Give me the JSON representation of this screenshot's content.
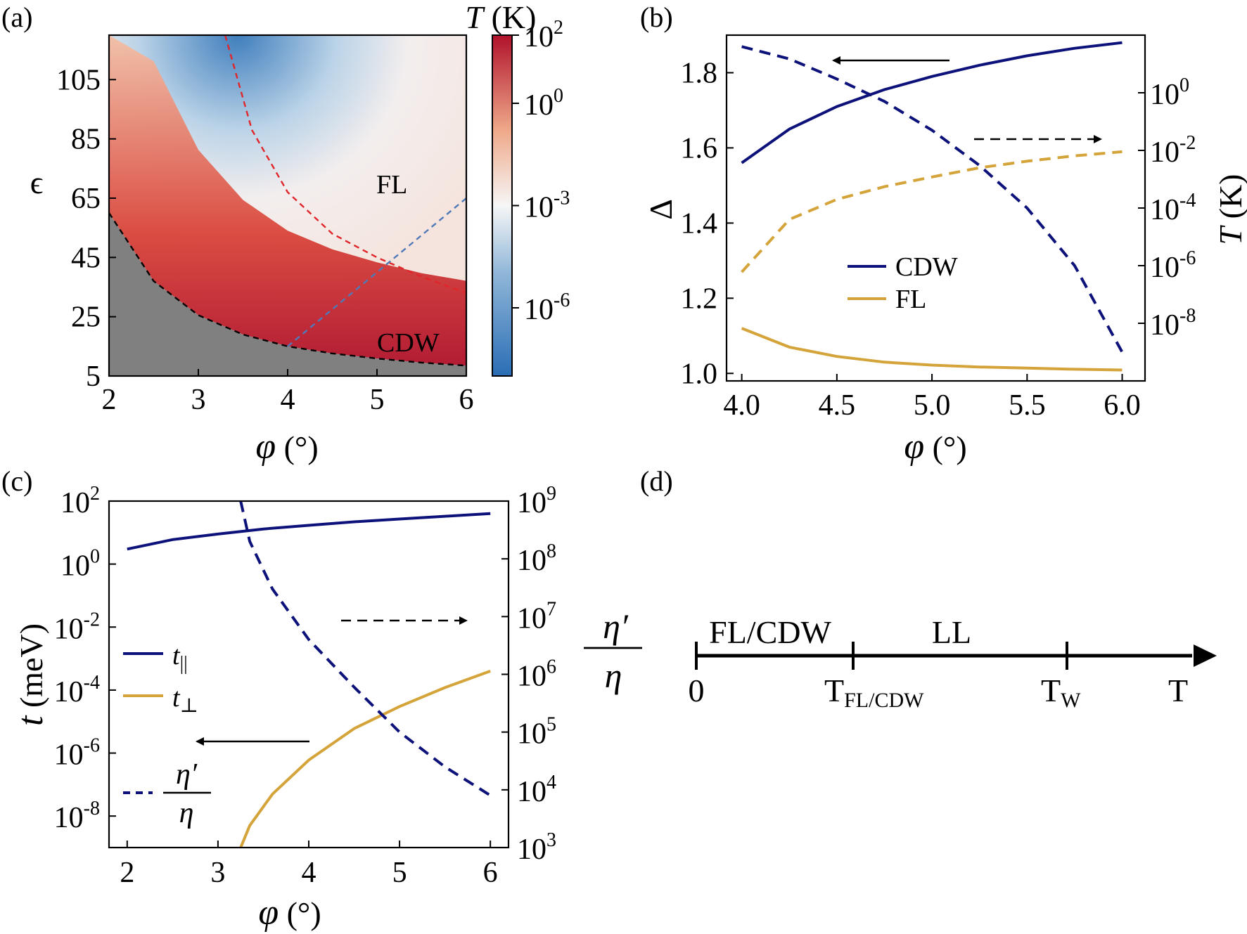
{
  "colors": {
    "navy": "#0d127a",
    "gold": "#d4a43a",
    "red_dash": "#e0262a",
    "blue_dash": "#5079b8",
    "gray_region": "#808080"
  },
  "chart_data": [
    {
      "panel": "(a)",
      "type": "heatmap",
      "xlabel": "φ (°)",
      "ylabel": "ϵ",
      "xlim": [
        2,
        6
      ],
      "ylim": [
        5,
        120
      ],
      "xticks": [
        "2",
        "3",
        "4",
        "5",
        "6"
      ],
      "yticks": [
        "5",
        "25",
        "45",
        "65",
        "85",
        "105"
      ],
      "colorbar": {
        "label": "T (K)",
        "scale": "log",
        "range": [
          1e-08,
          100
        ],
        "ticks": [
          {
            "base": "10",
            "exp": "2",
            "value": 100
          },
          {
            "base": "10",
            "exp": "0",
            "value": 1
          },
          {
            "base": "10",
            "exp": "-3",
            "value": 0.001
          },
          {
            "base": "10",
            "exp": "-6",
            "value": 1e-06
          }
        ]
      },
      "regions": [
        "FL",
        "CDW"
      ],
      "curves": [
        {
          "role": "boundary-black-dashed",
          "x": [
            2.0,
            2.5,
            3.0,
            3.5,
            4.0,
            4.5,
            5.0,
            5.5,
            6.0
          ],
          "y": [
            60,
            37,
            25.5,
            19,
            15,
            12.6,
            10.9,
            9.5,
            8.5
          ]
        },
        {
          "role": "red-dashed",
          "x": [
            3.3,
            3.6,
            4.0,
            4.5,
            5.0,
            5.5,
            6.0
          ],
          "y": [
            120,
            88,
            67,
            53,
            45,
            38.5,
            33
          ]
        },
        {
          "role": "blue-dashed",
          "x": [
            4.0,
            6.0
          ],
          "y": [
            15,
            65
          ]
        }
      ]
    },
    {
      "panel": "(b)",
      "type": "line",
      "xlabel": "φ (°)",
      "ylabel": "Δ",
      "ylabel_right": "T (K)",
      "xlim": [
        3.92,
        6.12
      ],
      "ylim": [
        0.98,
        1.9
      ],
      "y2_scale": "log",
      "y2_range": [
        1e-10,
        100
      ],
      "xticks": [
        "4.0",
        "4.5",
        "5.0",
        "5.5",
        "6.0"
      ],
      "yticks": [
        "1.0",
        "1.2",
        "1.4",
        "1.6",
        "1.8"
      ],
      "y2ticks": [
        {
          "base": "10",
          "exp": "0",
          "value": 1
        },
        {
          "base": "10",
          "exp": "-2",
          "value": 0.01
        },
        {
          "base": "10",
          "exp": "-4",
          "value": 0.0001
        },
        {
          "base": "10",
          "exp": "-6",
          "value": 1e-06
        },
        {
          "base": "10",
          "exp": "-8",
          "value": 1e-08
        }
      ],
      "legend": [
        "CDW",
        "FL"
      ],
      "series": [
        {
          "name": "CDW",
          "axis": "left",
          "style": "solid",
          "x": [
            4.0,
            4.25,
            4.5,
            4.75,
            5.0,
            5.25,
            5.5,
            5.75,
            6.0
          ],
          "y": [
            1.56,
            1.65,
            1.71,
            1.755,
            1.79,
            1.82,
            1.845,
            1.865,
            1.88
          ]
        },
        {
          "name": "FL",
          "axis": "left",
          "style": "solid",
          "x": [
            4.0,
            4.25,
            4.5,
            4.75,
            5.0,
            5.25,
            5.5,
            5.75,
            6.0
          ],
          "y": [
            1.12,
            1.07,
            1.045,
            1.03,
            1.022,
            1.017,
            1.014,
            1.011,
            1.009
          ]
        },
        {
          "name": "CDW",
          "axis": "right",
          "style": "dashed",
          "x": [
            4.0,
            4.25,
            4.5,
            4.75,
            5.0,
            5.25,
            5.5,
            5.75,
            6.0
          ],
          "y": [
            40,
            15,
            3,
            0.5,
            0.05,
            0.003,
            0.0001,
            1e-06,
            1e-09
          ]
        },
        {
          "name": "FL",
          "axis": "right",
          "style": "dashed",
          "x": [
            4.0,
            4.25,
            4.5,
            4.75,
            5.0,
            5.25,
            5.5,
            5.75,
            6.0
          ],
          "y": [
            6e-07,
            4e-05,
            0.0002,
            0.00055,
            0.0012,
            0.0025,
            0.0042,
            0.0065,
            0.009
          ]
        }
      ]
    },
    {
      "panel": "(c)",
      "type": "line",
      "xlabel": "φ (°)",
      "ylabel": "t (meV)",
      "ylabel_right": "η′/η",
      "xlim": [
        1.8,
        6.2
      ],
      "y_scale": "log",
      "ylim": [
        1e-09,
        100
      ],
      "y2_scale": "log",
      "y2_range": [
        1000,
        1000000000
      ],
      "xticks": [
        "2",
        "3",
        "4",
        "5",
        "6"
      ],
      "yticks": [
        {
          "base": "10",
          "exp": "2",
          "value": 100
        },
        {
          "base": "10",
          "exp": "0",
          "value": 1
        },
        {
          "base": "10",
          "exp": "-2",
          "value": 0.01
        },
        {
          "base": "10",
          "exp": "-4",
          "value": 0.0001
        },
        {
          "base": "10",
          "exp": "-6",
          "value": 1e-06
        },
        {
          "base": "10",
          "exp": "-8",
          "value": 1e-08
        }
      ],
      "y2ticks": [
        {
          "base": "10",
          "exp": "9",
          "value": 1000000000
        },
        {
          "base": "10",
          "exp": "8",
          "value": 100000000
        },
        {
          "base": "10",
          "exp": "7",
          "value": 10000000
        },
        {
          "base": "10",
          "exp": "6",
          "value": 1000000
        },
        {
          "base": "10",
          "exp": "5",
          "value": 100000
        },
        {
          "base": "10",
          "exp": "4",
          "value": 10000
        },
        {
          "base": "10",
          "exp": "3",
          "value": 1000
        }
      ],
      "legend": [
        {
          "sym": "t",
          "sub": "||"
        },
        {
          "sym": "t",
          "sub": "⊥"
        },
        {
          "num": "η′",
          "den": "η"
        }
      ],
      "series": [
        {
          "name": "t||",
          "axis": "left",
          "style": "solid",
          "x": [
            2.0,
            2.5,
            3.0,
            3.5,
            4.0,
            4.5,
            5.0,
            5.5,
            6.0
          ],
          "y": [
            3,
            6,
            9,
            13,
            17,
            22,
            27,
            33,
            40
          ]
        },
        {
          "name": "t⊥",
          "axis": "left",
          "style": "solid",
          "x": [
            3.25,
            3.35,
            3.6,
            4.0,
            4.5,
            5.0,
            5.5,
            6.0
          ],
          "y": [
            1e-09,
            5e-09,
            5e-08,
            6e-07,
            6e-06,
            3e-05,
            0.00012,
            0.0004
          ]
        },
        {
          "name": "η′/η",
          "axis": "right",
          "style": "dashed",
          "x": [
            3.25,
            3.35,
            3.6,
            4.0,
            4.5,
            5.0,
            5.5,
            6.0
          ],
          "y": [
            1000000000,
            200000000,
            30000000,
            4000000,
            600000,
            100000,
            25000,
            8000
          ]
        }
      ]
    },
    {
      "panel": "(d)",
      "type": "diagram",
      "axis_label": "T",
      "regions": [
        "FL/CDW",
        "LL"
      ],
      "ticks": [
        {
          "label": "0"
        },
        {
          "label": "T",
          "sub": "FL/CDW"
        },
        {
          "label": "T",
          "sub": "W"
        }
      ]
    }
  ]
}
